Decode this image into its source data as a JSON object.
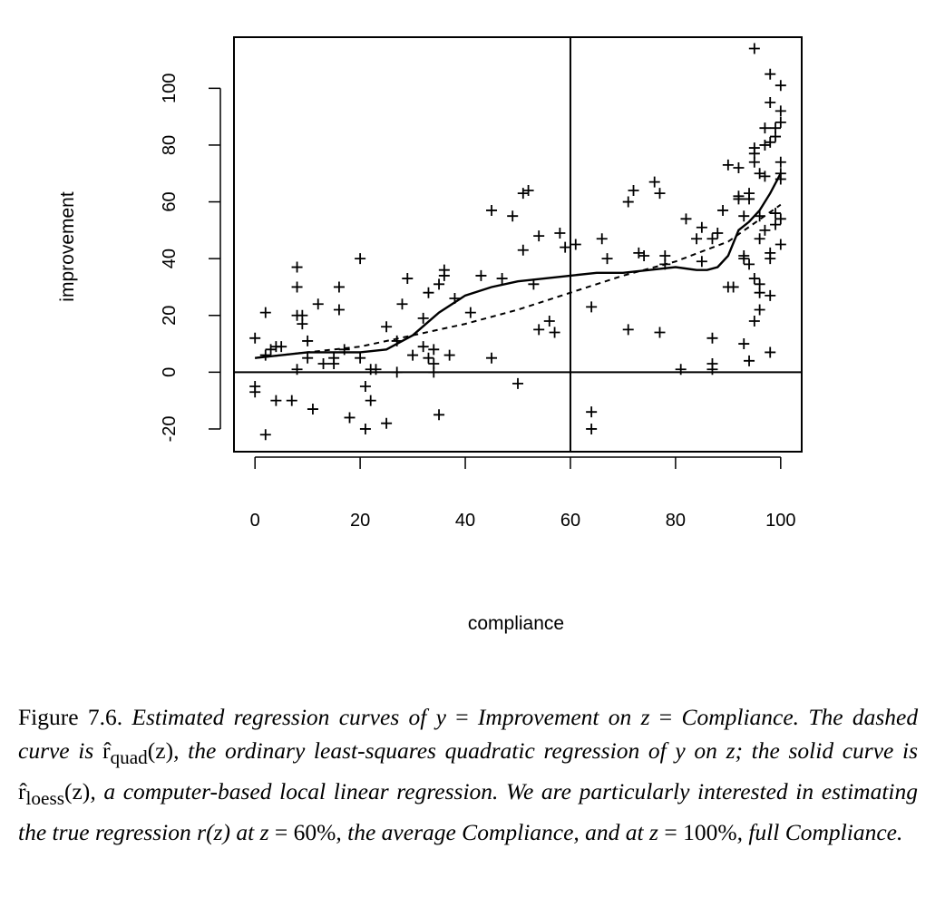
{
  "chart_data": {
    "type": "scatter",
    "xlabel": "compliance",
    "ylabel": "improvement",
    "xlim": [
      -4,
      104
    ],
    "ylim": [
      -28,
      118
    ],
    "x_ticks": [
      0,
      20,
      40,
      60,
      80,
      100
    ],
    "y_ticks": [
      -20,
      0,
      20,
      40,
      60,
      80,
      100
    ],
    "reference_lines": {
      "vertical_x": 60,
      "horizontal_y": 0
    },
    "grid": false,
    "legend": "none",
    "marker": "+",
    "points": [
      [
        0,
        12
      ],
      [
        0,
        -5
      ],
      [
        0,
        -7
      ],
      [
        2,
        6
      ],
      [
        2,
        21
      ],
      [
        2,
        -22
      ],
      [
        3,
        8
      ],
      [
        4,
        9
      ],
      [
        4,
        -10
      ],
      [
        5,
        9
      ],
      [
        7,
        -10
      ],
      [
        8,
        37
      ],
      [
        8,
        30
      ],
      [
        8,
        20
      ],
      [
        8,
        1
      ],
      [
        9,
        20
      ],
      [
        9,
        17
      ],
      [
        10,
        11
      ],
      [
        10,
        5
      ],
      [
        11,
        -13
      ],
      [
        12,
        24
      ],
      [
        13,
        3
      ],
      [
        15,
        5
      ],
      [
        15,
        3
      ],
      [
        16,
        30
      ],
      [
        16,
        22
      ],
      [
        17,
        8
      ],
      [
        18,
        -16
      ],
      [
        20,
        40
      ],
      [
        20,
        5
      ],
      [
        21,
        -5
      ],
      [
        21,
        -20
      ],
      [
        22,
        -10
      ],
      [
        22,
        1
      ],
      [
        23,
        1
      ],
      [
        25,
        16
      ],
      [
        25,
        -18
      ],
      [
        27,
        11
      ],
      [
        27,
        0
      ],
      [
        28,
        24
      ],
      [
        29,
        33
      ],
      [
        30,
        6
      ],
      [
        32,
        19
      ],
      [
        32,
        9
      ],
      [
        33,
        28
      ],
      [
        33,
        5
      ],
      [
        34,
        8
      ],
      [
        34,
        3
      ],
      [
        34,
        0
      ],
      [
        35,
        31
      ],
      [
        35,
        -15
      ],
      [
        36,
        34
      ],
      [
        36,
        36
      ],
      [
        37,
        6
      ],
      [
        38,
        26
      ],
      [
        41,
        21
      ],
      [
        43,
        34
      ],
      [
        45,
        57
      ],
      [
        45,
        5
      ],
      [
        47,
        33
      ],
      [
        49,
        55
      ],
      [
        50,
        -4
      ],
      [
        51,
        43
      ],
      [
        51,
        63
      ],
      [
        52,
        64
      ],
      [
        53,
        31
      ],
      [
        54,
        15
      ],
      [
        54,
        48
      ],
      [
        56,
        18
      ],
      [
        57,
        14
      ],
      [
        58,
        49
      ],
      [
        59,
        44
      ],
      [
        61,
        45
      ],
      [
        64,
        -14
      ],
      [
        64,
        -20
      ],
      [
        64,
        23
      ],
      [
        66,
        47
      ],
      [
        67,
        40
      ],
      [
        71,
        15
      ],
      [
        71,
        60
      ],
      [
        72,
        64
      ],
      [
        73,
        42
      ],
      [
        74,
        41
      ],
      [
        76,
        67
      ],
      [
        77,
        63
      ],
      [
        77,
        14
      ],
      [
        78,
        38
      ],
      [
        78,
        41
      ],
      [
        81,
        1
      ],
      [
        82,
        54
      ],
      [
        84,
        47
      ],
      [
        85,
        51
      ],
      [
        85,
        39
      ],
      [
        87,
        47
      ],
      [
        87,
        12
      ],
      [
        87,
        3
      ],
      [
        87,
        1
      ],
      [
        88,
        49
      ],
      [
        89,
        57
      ],
      [
        90,
        73
      ],
      [
        90,
        30
      ],
      [
        91,
        30
      ],
      [
        92,
        61
      ],
      [
        92,
        62
      ],
      [
        92,
        72
      ],
      [
        93,
        10
      ],
      [
        93,
        40
      ],
      [
        93,
        41
      ],
      [
        93,
        55
      ],
      [
        94,
        61
      ],
      [
        94,
        63
      ],
      [
        94,
        38
      ],
      [
        94,
        4
      ],
      [
        95,
        114
      ],
      [
        95,
        77
      ],
      [
        95,
        79
      ],
      [
        95,
        74
      ],
      [
        95,
        18
      ],
      [
        95,
        33
      ],
      [
        96,
        70
      ],
      [
        96,
        55
      ],
      [
        96,
        47
      ],
      [
        96,
        31
      ],
      [
        96,
        22
      ],
      [
        96,
        28
      ],
      [
        97,
        80
      ],
      [
        97,
        86
      ],
      [
        97,
        69
      ],
      [
        97,
        50
      ],
      [
        98,
        81
      ],
      [
        98,
        105
      ],
      [
        98,
        95
      ],
      [
        98,
        42
      ],
      [
        98,
        40
      ],
      [
        98,
        27
      ],
      [
        98,
        7
      ],
      [
        99,
        83
      ],
      [
        99,
        86
      ],
      [
        99,
        56
      ],
      [
        99,
        52
      ],
      [
        100,
        101
      ],
      [
        100,
        92
      ],
      [
        100,
        88
      ],
      [
        100,
        74
      ],
      [
        100,
        70
      ],
      [
        100,
        68
      ],
      [
        100,
        54
      ],
      [
        100,
        45
      ]
    ],
    "series": [
      {
        "style": "solid",
        "x": [
          0,
          5,
          10,
          15,
          20,
          25,
          30,
          35,
          40,
          45,
          50,
          55,
          60,
          65,
          70,
          75,
          80,
          84,
          86,
          88,
          90,
          92,
          94,
          96,
          98,
          100
        ],
        "y": [
          5,
          6,
          7,
          7,
          7,
          8,
          13,
          21,
          27,
          30,
          32,
          33,
          34,
          35,
          35,
          36,
          37,
          36,
          36,
          37,
          41,
          50,
          53,
          57,
          63,
          70
        ]
      },
      {
        "style": "dashed",
        "x": [
          0,
          10,
          20,
          30,
          40,
          50,
          60,
          70,
          80,
          90,
          100
        ],
        "y": [
          5,
          7,
          9,
          13,
          17,
          22,
          28,
          34,
          39,
          46,
          59
        ]
      }
    ]
  },
  "caption": {
    "fig_label": "Figure 7.6.",
    "pre_y": "Estimated regression curves of",
    "var_y": "y",
    "eq": "=",
    "pre_z": "Improvement on",
    "var_z": "z",
    "compliance_1": "Compliance. The dashed curve is",
    "r_hat": "r̂",
    "quad_sub": "quad",
    "z_arg": "(z)",
    "after_quad": ", the ordinary least-squares quadratic regression of",
    "on_z": "on",
    "solid_text": "; the solid curve is",
    "loess_sub": "loess",
    "after_loess": ", a computer-based local linear regression. We are particularly interested in estimating the true regression",
    "r_of_z": "r(z)",
    "at_text": "at",
    "sixty": "60%",
    "avg_text": ", the average Compliance, and at",
    "hundred": "100%",
    "full_text": ", full Compliance."
  }
}
